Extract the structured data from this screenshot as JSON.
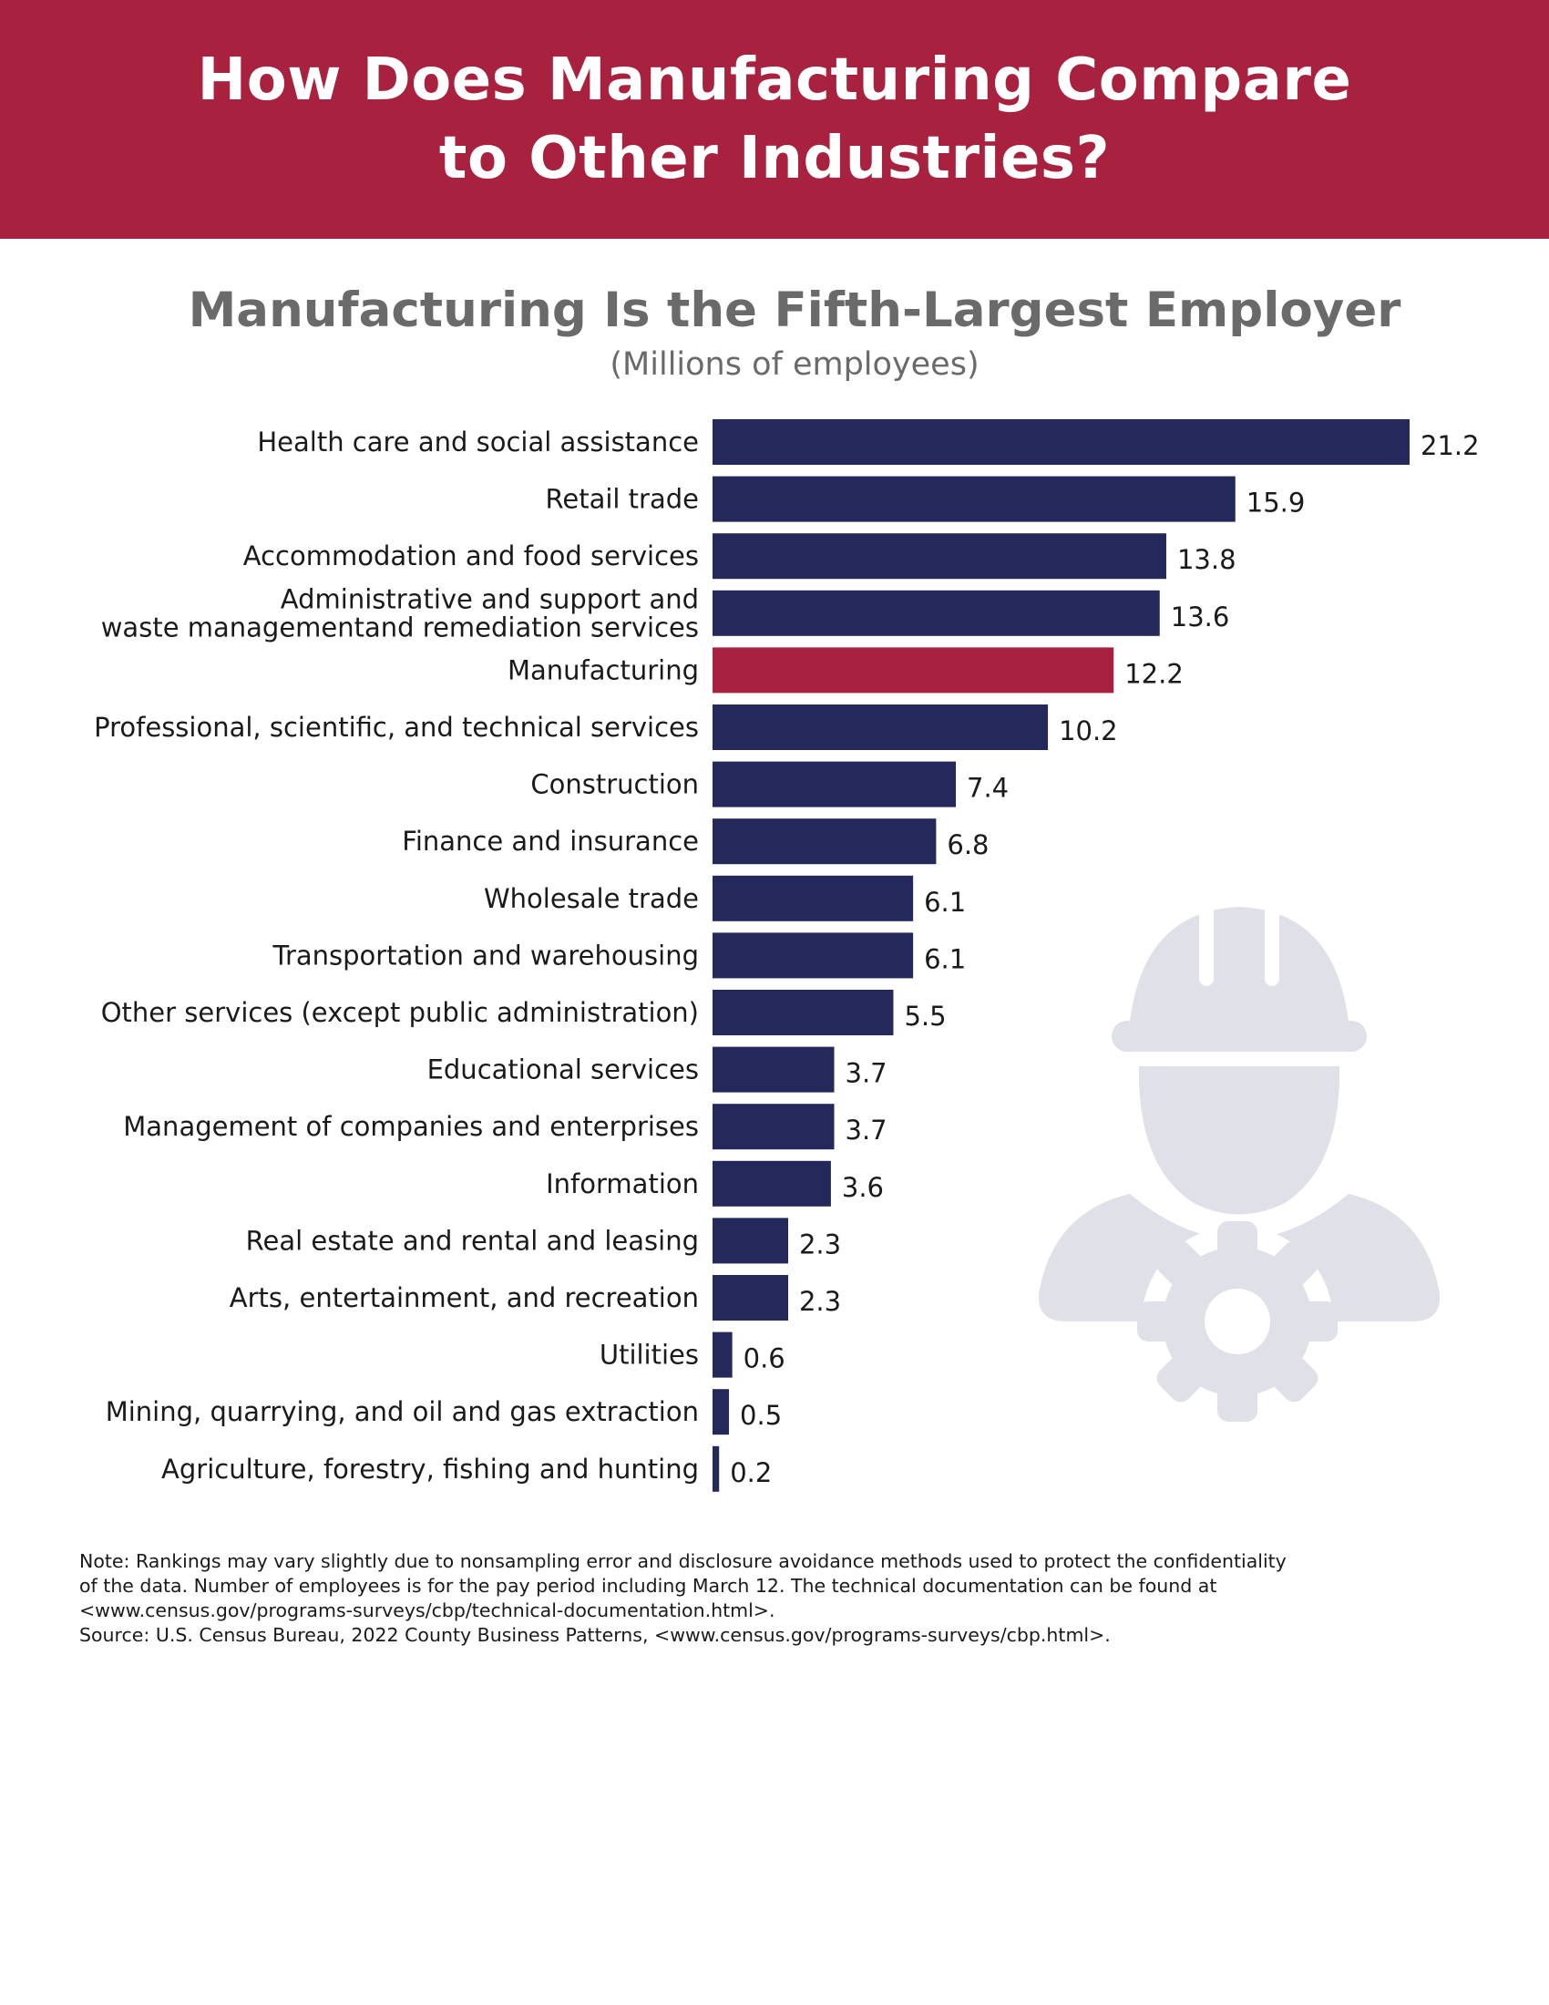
{
  "banner": {
    "title": "How Does Manufacturing Compare\nto Other Industries?"
  },
  "chart_data": {
    "type": "bar",
    "orientation": "horizontal",
    "title": "Manufacturing Is the Fifth-Largest Employer",
    "subtitle": "(Millions of employees)",
    "xlabel": "",
    "ylabel": "",
    "xlim": [
      0,
      21.2
    ],
    "grid": false,
    "legend": "none",
    "categories": [
      [
        "Health care and social assistance"
      ],
      [
        "Retail trade"
      ],
      [
        "Accommodation and food services"
      ],
      [
        "Administrative and support and",
        "waste managementand remediation services"
      ],
      [
        "Manufacturing"
      ],
      [
        "Professional, scientific, and technical services"
      ],
      [
        "Construction"
      ],
      [
        "Finance and insurance"
      ],
      [
        "Wholesale trade"
      ],
      [
        "Transportation and warehousing"
      ],
      [
        "Other services (except public administration)"
      ],
      [
        "Educational services"
      ],
      [
        "Management of companies and enterprises"
      ],
      [
        "Information"
      ],
      [
        "Real estate and rental and leasing"
      ],
      [
        "Arts, entertainment, and recreation"
      ],
      [
        "Utilities"
      ],
      [
        "Mining, quarrying, and oil and gas extraction"
      ],
      [
        "Agriculture, forestry, fishing and hunting"
      ]
    ],
    "values": [
      21.2,
      15.9,
      13.8,
      13.6,
      12.2,
      10.2,
      7.4,
      6.8,
      6.1,
      6.1,
      5.5,
      3.7,
      3.7,
      3.6,
      2.3,
      2.3,
      0.6,
      0.5,
      0.2
    ],
    "value_labels": [
      "21.2",
      "15.9",
      "13.8",
      "13.6",
      "12.2",
      "10.2",
      "7.4",
      "6.8",
      "6.1",
      "6.1",
      "5.5",
      "3.7",
      "3.7",
      "3.6",
      "2.3",
      "2.3",
      "0.6",
      "0.5",
      "0.2"
    ],
    "highlight_index": 4,
    "colors": {
      "bar": "#25285b",
      "highlight": "#a8213f",
      "highlight_label": "#a8213f",
      "label": "#1a1a1a"
    }
  },
  "notes": {
    "line1": "Note: Rankings may vary slightly due to nonsampling error and disclosure avoidance methods used to protect the confidentiality",
    "line2": "of the data. Number of employees is for the pay period including March 12. The technical documentation can be found at",
    "line3": "<www.census.gov/programs-surveys/cbp/technical-documentation.html>.",
    "source": "Source: U.S. Census Bureau, 2022 County Business Patterns, <www.census.gov/programs-surveys/cbp.html>."
  },
  "illustration": {
    "icon": "construction-worker-gear-icon",
    "color": "#dfe0e8"
  }
}
